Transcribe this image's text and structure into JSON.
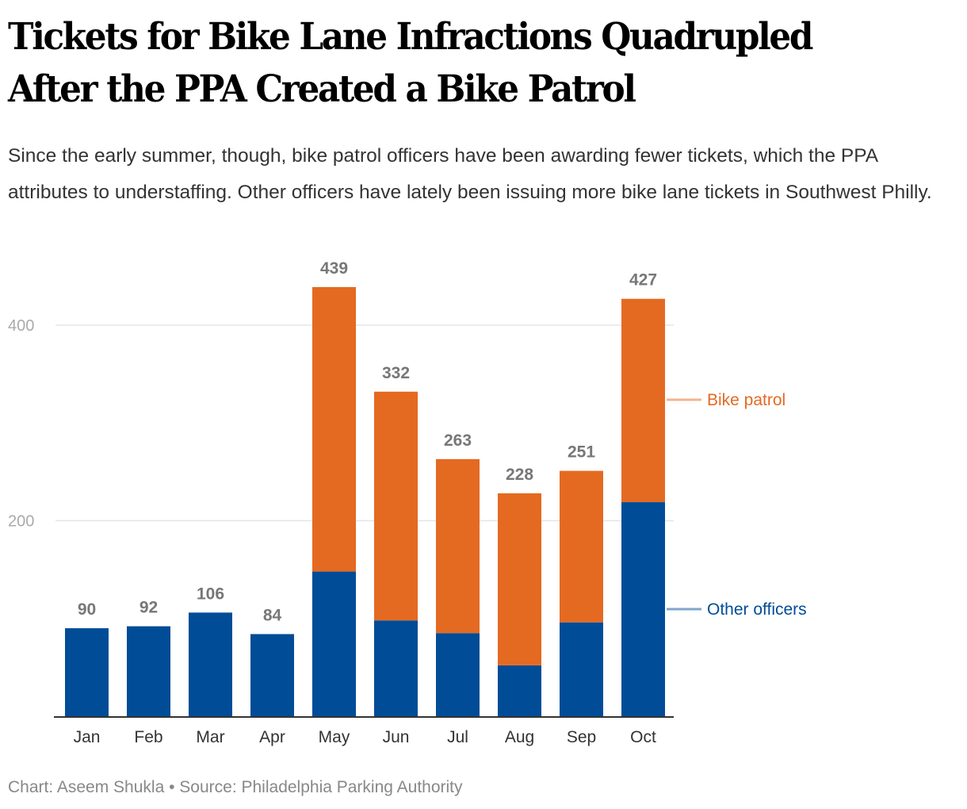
{
  "header": {
    "title_line1": "Tickets for Bike Lane Infractions Quadrupled",
    "title_line2": "After the PPA Created a Bike Patrol",
    "subtitle": "Since the early summer, though, bike patrol officers have been awarding fewer tickets, which the PPA attributes to understaffing. Other officers have lately been issuing more bike lane tickets in Southwest Philly."
  },
  "footer": {
    "credit": "Chart: Aseem Shukla • Source: Philadelphia Parking Authority"
  },
  "colors": {
    "other_officers": "#004c97",
    "bike_patrol": "#e46a22",
    "legend_other_line": "#7fa5cc",
    "legend_bike_line": "#f4b38d",
    "gridline": "#e5e5e5",
    "axis": "#333333"
  },
  "chart_data": {
    "type": "bar",
    "stacked": true,
    "title": "Tickets for Bike Lane Infractions Quadrupled After the PPA Created a Bike Patrol",
    "xlabel": "",
    "ylabel": "",
    "categories": [
      "Jan",
      "Feb",
      "Mar",
      "Apr",
      "May",
      "Jun",
      "Jul",
      "Aug",
      "Sep",
      "Oct"
    ],
    "series": [
      {
        "name": "Other officers",
        "values": [
          90,
          92,
          106,
          84,
          148,
          98,
          85,
          52,
          96,
          219
        ]
      },
      {
        "name": "Bike patrol",
        "values": [
          0,
          0,
          0,
          0,
          291,
          234,
          178,
          176,
          155,
          208
        ]
      }
    ],
    "totals": [
      90,
      92,
      106,
      84,
      439,
      332,
      263,
      228,
      251,
      427
    ],
    "yticks": [
      200,
      400
    ],
    "ylim": [
      0,
      440
    ],
    "grid": true,
    "legend": "right, inline labels",
    "legend_entries": [
      "Bike patrol",
      "Other officers"
    ]
  }
}
